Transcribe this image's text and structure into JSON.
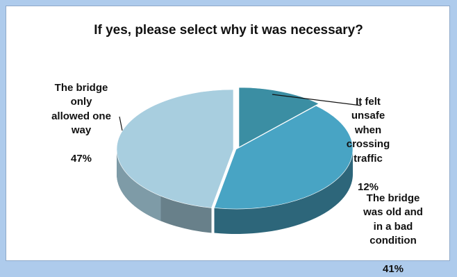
{
  "chart_data": {
    "type": "pie",
    "title": "If yes, please select why it was necessary?",
    "slices": [
      {
        "label": "It felt\nunsafe\nwhen\ncrossing\ntraffic",
        "value": 12,
        "pct_label": "12%",
        "color": "#3b8ea3"
      },
      {
        "label": "The bridge\nwas old and\nin a bad\ncondition",
        "value": 41,
        "pct_label": "41%",
        "color": "#48a4c4"
      },
      {
        "label": "The bridge\nonly\nallowed one\nway",
        "value": 47,
        "pct_label": "47%",
        "color": "#a8cedf"
      }
    ],
    "legend": "none",
    "style": "3d"
  }
}
